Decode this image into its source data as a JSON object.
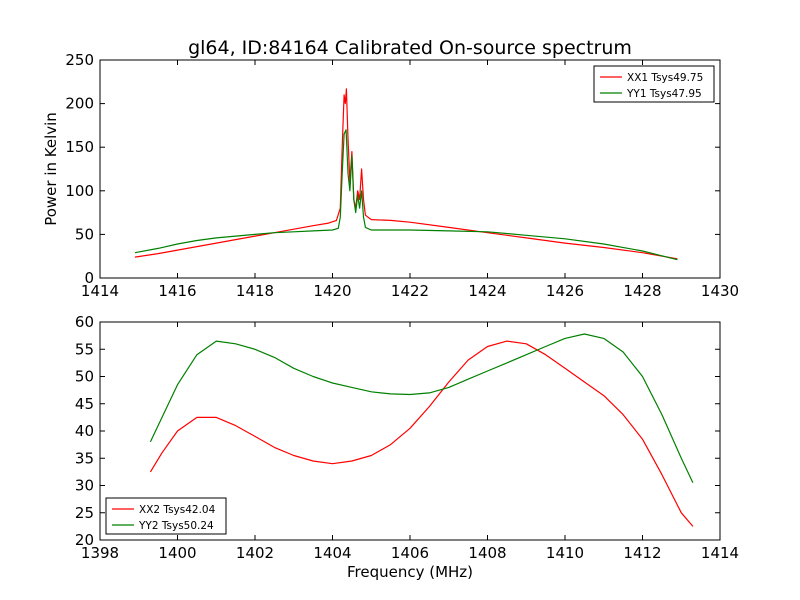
{
  "chart_data": [
    {
      "type": "line",
      "title": "gl64, ID:84164 Calibrated On-source spectrum",
      "xlabel": "",
      "ylabel": "Power in Kelvin",
      "xlim": [
        1414,
        1430
      ],
      "ylim": [
        0,
        250
      ],
      "xticks": [
        "1414",
        "1416",
        "1418",
        "1420",
        "1422",
        "1424",
        "1426",
        "1428",
        "1430"
      ],
      "yticks": [
        "0",
        "50",
        "100",
        "150",
        "200",
        "250"
      ],
      "grid": false,
      "legend_position": "top-right",
      "series": [
        {
          "name": "XX1 Tsys49.75",
          "color": "#ff0000",
          "points": [
            [
              1414.9,
              24
            ],
            [
              1415.5,
              28
            ],
            [
              1416,
              32
            ],
            [
              1416.5,
              36
            ],
            [
              1417,
              40
            ],
            [
              1417.5,
              44
            ],
            [
              1418,
              48
            ],
            [
              1418.5,
              52
            ],
            [
              1419,
              56
            ],
            [
              1419.5,
              60
            ],
            [
              1419.9,
              63
            ],
            [
              1420.1,
              66
            ],
            [
              1420.2,
              80
            ],
            [
              1420.25,
              150
            ],
            [
              1420.3,
              210
            ],
            [
              1420.33,
              200
            ],
            [
              1420.36,
              217
            ],
            [
              1420.4,
              160
            ],
            [
              1420.45,
              110
            ],
            [
              1420.5,
              145
            ],
            [
              1420.55,
              90
            ],
            [
              1420.6,
              80
            ],
            [
              1420.65,
              100
            ],
            [
              1420.7,
              90
            ],
            [
              1420.75,
              125
            ],
            [
              1420.8,
              90
            ],
            [
              1420.85,
              72
            ],
            [
              1421,
              67
            ],
            [
              1421.5,
              66
            ],
            [
              1422,
              64
            ],
            [
              1423,
              58
            ],
            [
              1424,
              52
            ],
            [
              1425,
              46
            ],
            [
              1426,
              40
            ],
            [
              1427,
              35
            ],
            [
              1428,
              29
            ],
            [
              1428.9,
              22
            ]
          ]
        },
        {
          "name": "YY1 Tsys47.95",
          "color": "#008000",
          "points": [
            [
              1414.9,
              29
            ],
            [
              1415.5,
              34
            ],
            [
              1416,
              39
            ],
            [
              1416.5,
              43
            ],
            [
              1417,
              46
            ],
            [
              1417.5,
              48
            ],
            [
              1418,
              50
            ],
            [
              1418.5,
              52
            ],
            [
              1419,
              53
            ],
            [
              1419.5,
              54
            ],
            [
              1420,
              55
            ],
            [
              1420.15,
              57
            ],
            [
              1420.2,
              70
            ],
            [
              1420.25,
              120
            ],
            [
              1420.3,
              165
            ],
            [
              1420.35,
              170
            ],
            [
              1420.4,
              120
            ],
            [
              1420.45,
              100
            ],
            [
              1420.5,
              140
            ],
            [
              1420.55,
              90
            ],
            [
              1420.6,
              75
            ],
            [
              1420.65,
              95
            ],
            [
              1420.7,
              80
            ],
            [
              1420.75,
              100
            ],
            [
              1420.8,
              70
            ],
            [
              1420.85,
              58
            ],
            [
              1421,
              55
            ],
            [
              1422,
              55
            ],
            [
              1423,
              54
            ],
            [
              1424,
              53
            ],
            [
              1425,
              49
            ],
            [
              1426,
              45
            ],
            [
              1427,
              39
            ],
            [
              1428,
              31
            ],
            [
              1428.9,
              21
            ]
          ]
        }
      ]
    },
    {
      "type": "line",
      "title": "",
      "xlabel": "Frequency (MHz)",
      "ylabel": "",
      "xlim": [
        1398,
        1414
      ],
      "ylim": [
        20,
        60
      ],
      "xticks": [
        "1398",
        "1400",
        "1402",
        "1404",
        "1406",
        "1408",
        "1410",
        "1412",
        "1414"
      ],
      "yticks": [
        "20",
        "25",
        "30",
        "35",
        "40",
        "45",
        "50",
        "55",
        "60"
      ],
      "grid": false,
      "legend_position": "bottom-left",
      "series": [
        {
          "name": "XX2 Tsys42.04",
          "color": "#ff0000",
          "points": [
            [
              1399.3,
              32.5
            ],
            [
              1399.6,
              36
            ],
            [
              1400,
              40
            ],
            [
              1400.5,
              42.5
            ],
            [
              1401,
              42.5
            ],
            [
              1401.5,
              41
            ],
            [
              1402,
              39
            ],
            [
              1402.5,
              37
            ],
            [
              1403,
              35.5
            ],
            [
              1403.5,
              34.5
            ],
            [
              1404,
              34
            ],
            [
              1404.5,
              34.5
            ],
            [
              1405,
              35.5
            ],
            [
              1405.5,
              37.5
            ],
            [
              1406,
              40.5
            ],
            [
              1406.5,
              44.5
            ],
            [
              1407,
              49
            ],
            [
              1407.5,
              53
            ],
            [
              1408,
              55.5
            ],
            [
              1408.5,
              56.5
            ],
            [
              1409,
              56
            ],
            [
              1409.5,
              54
            ],
            [
              1410,
              51.5
            ],
            [
              1410.5,
              49
            ],
            [
              1411,
              46.5
            ],
            [
              1411.5,
              43
            ],
            [
              1412,
              38.5
            ],
            [
              1412.5,
              32
            ],
            [
              1413,
              25
            ],
            [
              1413.3,
              22.5
            ]
          ]
        },
        {
          "name": "YY2 Tsys50.24",
          "color": "#008000",
          "points": [
            [
              1399.3,
              38
            ],
            [
              1399.6,
              42.5
            ],
            [
              1400,
              48.5
            ],
            [
              1400.5,
              54
            ],
            [
              1401,
              56.5
            ],
            [
              1401.5,
              56
            ],
            [
              1402,
              55
            ],
            [
              1402.5,
              53.5
            ],
            [
              1403,
              51.5
            ],
            [
              1403.5,
              50
            ],
            [
              1404,
              48.8
            ],
            [
              1404.5,
              48
            ],
            [
              1405,
              47.2
            ],
            [
              1405.5,
              46.8
            ],
            [
              1406,
              46.7
            ],
            [
              1406.5,
              47
            ],
            [
              1407,
              48
            ],
            [
              1407.5,
              49.5
            ],
            [
              1408,
              51
            ],
            [
              1408.5,
              52.5
            ],
            [
              1409,
              54
            ],
            [
              1409.5,
              55.5
            ],
            [
              1410,
              57
            ],
            [
              1410.5,
              57.8
            ],
            [
              1411,
              57
            ],
            [
              1411.5,
              54.5
            ],
            [
              1412,
              50
            ],
            [
              1412.5,
              43
            ],
            [
              1413,
              35
            ],
            [
              1413.3,
              30.5
            ]
          ]
        }
      ]
    }
  ]
}
